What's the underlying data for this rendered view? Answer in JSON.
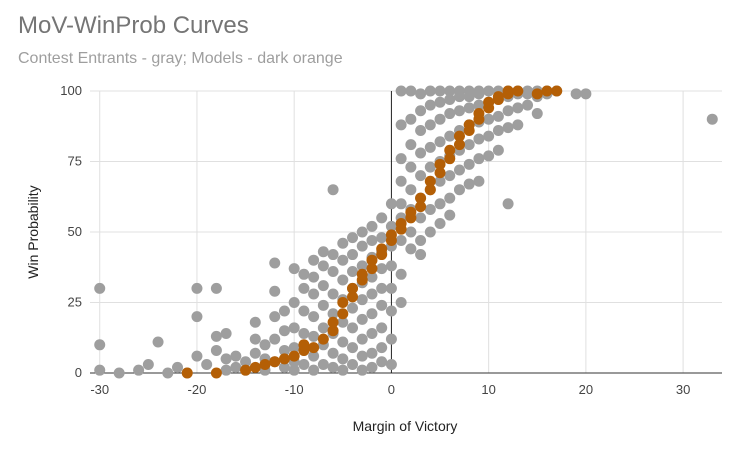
{
  "title": "MoV-WinProb Curves",
  "subtitle": "Contest Entrants - gray; Models - dark orange",
  "chart_data": {
    "type": "scatter",
    "title": "MoV-WinProb Curves",
    "subtitle": "Contest Entrants - gray; Models - dark orange",
    "xlabel": "Margin of Victory",
    "ylabel": "Win Probability",
    "xlim": [
      -31,
      34
    ],
    "ylim": [
      0,
      100
    ],
    "x_ticks": [
      -30,
      -20,
      -10,
      0,
      10,
      20,
      30
    ],
    "x_tick_labels": [
      "-30",
      "-20",
      "-10",
      "0",
      "10",
      "20",
      "30"
    ],
    "y_ticks": [
      0,
      25,
      50,
      75,
      100
    ],
    "y_tick_labels": [
      "0",
      "25",
      "50",
      "75",
      "100"
    ],
    "grid": true,
    "legend": "none",
    "colors": {
      "entrants": "#9e9e9e",
      "models": "#b45f06",
      "zero_line": "#222222",
      "grid": "#e0e0e0"
    },
    "series": [
      {
        "color_key": "entrants",
        "points": [
          [
            -30,
            30
          ],
          [
            -30,
            10
          ],
          [
            -30,
            1
          ],
          [
            -28,
            0
          ],
          [
            -26,
            1
          ],
          [
            -25,
            3
          ],
          [
            -24,
            11
          ],
          [
            -23,
            0
          ],
          [
            -22,
            2
          ],
          [
            -21,
            0
          ],
          [
            -20,
            30
          ],
          [
            -20,
            20
          ],
          [
            -20,
            6
          ],
          [
            -19,
            3
          ],
          [
            -18,
            30
          ],
          [
            -18,
            13
          ],
          [
            -18,
            8
          ],
          [
            -17,
            14
          ],
          [
            -17,
            5
          ],
          [
            -17,
            1
          ],
          [
            -16,
            6
          ],
          [
            -16,
            2
          ],
          [
            -15,
            4
          ],
          [
            -15,
            1
          ],
          [
            -14,
            18
          ],
          [
            -14,
            12
          ],
          [
            -14,
            7
          ],
          [
            -13,
            10
          ],
          [
            -13,
            5
          ],
          [
            -13,
            1
          ],
          [
            -12,
            39
          ],
          [
            -12,
            29
          ],
          [
            -12,
            20
          ],
          [
            -12,
            12
          ],
          [
            -12,
            4
          ],
          [
            -11,
            22
          ],
          [
            -11,
            15
          ],
          [
            -11,
            8
          ],
          [
            -11,
            2
          ],
          [
            -10,
            37
          ],
          [
            -10,
            25
          ],
          [
            -10,
            16
          ],
          [
            -10,
            9
          ],
          [
            -10,
            4
          ],
          [
            -10,
            1
          ],
          [
            -9,
            35
          ],
          [
            -9,
            30
          ],
          [
            -9,
            22
          ],
          [
            -9,
            14
          ],
          [
            -9,
            8
          ],
          [
            -9,
            3
          ],
          [
            -8,
            40
          ],
          [
            -8,
            34
          ],
          [
            -8,
            28
          ],
          [
            -8,
            20
          ],
          [
            -8,
            13
          ],
          [
            -8,
            6
          ],
          [
            -8,
            1
          ],
          [
            -7,
            43
          ],
          [
            -7,
            38
          ],
          [
            -7,
            31
          ],
          [
            -7,
            24
          ],
          [
            -7,
            16
          ],
          [
            -7,
            10
          ],
          [
            -7,
            3
          ],
          [
            -6,
            65
          ],
          [
            -6,
            42
          ],
          [
            -6,
            36
          ],
          [
            -6,
            28
          ],
          [
            -6,
            21
          ],
          [
            -6,
            14
          ],
          [
            -6,
            7
          ],
          [
            -6,
            2
          ],
          [
            -5,
            46
          ],
          [
            -5,
            40
          ],
          [
            -5,
            33
          ],
          [
            -5,
            26
          ],
          [
            -5,
            18
          ],
          [
            -5,
            11
          ],
          [
            -5,
            5
          ],
          [
            -5,
            1
          ],
          [
            -4,
            48
          ],
          [
            -4,
            42
          ],
          [
            -4,
            36
          ],
          [
            -4,
            30
          ],
          [
            -4,
            23
          ],
          [
            -4,
            16
          ],
          [
            -4,
            9
          ],
          [
            -4,
            3
          ],
          [
            -3,
            50
          ],
          [
            -3,
            45
          ],
          [
            -3,
            38
          ],
          [
            -3,
            32
          ],
          [
            -3,
            26
          ],
          [
            -3,
            19
          ],
          [
            -3,
            12
          ],
          [
            -3,
            6
          ],
          [
            -3,
            1
          ],
          [
            -2,
            52
          ],
          [
            -2,
            47
          ],
          [
            -2,
            41
          ],
          [
            -2,
            34
          ],
          [
            -2,
            28
          ],
          [
            -2,
            21
          ],
          [
            -2,
            14
          ],
          [
            -2,
            7
          ],
          [
            -2,
            2
          ],
          [
            -1,
            55
          ],
          [
            -1,
            48
          ],
          [
            -1,
            43
          ],
          [
            -1,
            37
          ],
          [
            -1,
            30
          ],
          [
            -1,
            24
          ],
          [
            -1,
            16
          ],
          [
            -1,
            9
          ],
          [
            -1,
            4
          ],
          [
            0,
            60
          ],
          [
            0,
            52
          ],
          [
            0,
            45
          ],
          [
            0,
            38
          ],
          [
            0,
            30
          ],
          [
            0,
            22
          ],
          [
            0,
            12
          ],
          [
            0,
            3
          ],
          [
            1,
            100
          ],
          [
            1,
            88
          ],
          [
            1,
            76
          ],
          [
            1,
            68
          ],
          [
            1,
            60
          ],
          [
            1,
            55
          ],
          [
            1,
            47
          ],
          [
            1,
            35
          ],
          [
            1,
            25
          ],
          [
            2,
            100
          ],
          [
            2,
            90
          ],
          [
            2,
            81
          ],
          [
            2,
            73
          ],
          [
            2,
            65
          ],
          [
            2,
            58
          ],
          [
            2,
            50
          ],
          [
            2,
            44
          ],
          [
            3,
            99
          ],
          [
            3,
            93
          ],
          [
            3,
            86
          ],
          [
            3,
            78
          ],
          [
            3,
            70
          ],
          [
            3,
            62
          ],
          [
            3,
            55
          ],
          [
            3,
            47
          ],
          [
            3,
            42
          ],
          [
            4,
            100
          ],
          [
            4,
            95
          ],
          [
            4,
            88
          ],
          [
            4,
            80
          ],
          [
            4,
            73
          ],
          [
            4,
            65
          ],
          [
            4,
            58
          ],
          [
            4,
            50
          ],
          [
            5,
            100
          ],
          [
            5,
            96
          ],
          [
            5,
            90
          ],
          [
            5,
            82
          ],
          [
            5,
            75
          ],
          [
            5,
            68
          ],
          [
            5,
            60
          ],
          [
            5,
            53
          ],
          [
            6,
            100
          ],
          [
            6,
            97
          ],
          [
            6,
            92
          ],
          [
            6,
            84
          ],
          [
            6,
            77
          ],
          [
            6,
            70
          ],
          [
            6,
            62
          ],
          [
            6,
            56
          ],
          [
            7,
            100
          ],
          [
            7,
            98
          ],
          [
            7,
            93
          ],
          [
            7,
            86
          ],
          [
            7,
            79
          ],
          [
            7,
            72
          ],
          [
            7,
            65
          ],
          [
            8,
            100
          ],
          [
            8,
            98
          ],
          [
            8,
            94
          ],
          [
            8,
            88
          ],
          [
            8,
            81
          ],
          [
            8,
            74
          ],
          [
            8,
            67
          ],
          [
            9,
            100
          ],
          [
            9,
            99
          ],
          [
            9,
            95
          ],
          [
            9,
            89
          ],
          [
            9,
            83
          ],
          [
            9,
            76
          ],
          [
            9,
            68
          ],
          [
            10,
            100
          ],
          [
            10,
            96
          ],
          [
            10,
            90
          ],
          [
            10,
            84
          ],
          [
            10,
            77
          ],
          [
            11,
            100
          ],
          [
            11,
            97
          ],
          [
            11,
            91
          ],
          [
            11,
            86
          ],
          [
            11,
            79
          ],
          [
            12,
            100
          ],
          [
            12,
            98
          ],
          [
            12,
            93
          ],
          [
            12,
            87
          ],
          [
            12,
            60
          ],
          [
            13,
            100
          ],
          [
            13,
            99
          ],
          [
            13,
            94
          ],
          [
            13,
            88
          ],
          [
            14,
            100
          ],
          [
            14,
            99
          ],
          [
            14,
            95
          ],
          [
            15,
            100
          ],
          [
            15,
            98
          ],
          [
            15,
            92
          ],
          [
            16,
            100
          ],
          [
            16,
            99
          ],
          [
            17,
            100
          ],
          [
            19,
            99
          ],
          [
            20,
            99
          ],
          [
            33,
            90
          ]
        ]
      },
      {
        "color_key": "models",
        "points": [
          [
            -21,
            0
          ],
          [
            -18,
            0
          ],
          [
            -15,
            1
          ],
          [
            -14,
            2
          ],
          [
            -13,
            3
          ],
          [
            -12,
            4
          ],
          [
            -11,
            5
          ],
          [
            -10,
            6
          ],
          [
            -9,
            8
          ],
          [
            -9,
            10
          ],
          [
            -8,
            9
          ],
          [
            -7,
            12
          ],
          [
            -6,
            15
          ],
          [
            -6,
            18
          ],
          [
            -5,
            21
          ],
          [
            -5,
            25
          ],
          [
            -4,
            27
          ],
          [
            -4,
            30
          ],
          [
            -3,
            33
          ],
          [
            -3,
            35
          ],
          [
            -2,
            37
          ],
          [
            -2,
            40
          ],
          [
            -1,
            42
          ],
          [
            -1,
            44
          ],
          [
            0,
            47
          ],
          [
            0,
            49
          ],
          [
            1,
            51
          ],
          [
            1,
            53
          ],
          [
            2,
            55
          ],
          [
            2,
            57
          ],
          [
            3,
            59
          ],
          [
            3,
            62
          ],
          [
            4,
            65
          ],
          [
            4,
            68
          ],
          [
            5,
            71
          ],
          [
            5,
            74
          ],
          [
            6,
            76
          ],
          [
            6,
            79
          ],
          [
            7,
            81
          ],
          [
            7,
            84
          ],
          [
            8,
            86
          ],
          [
            8,
            88
          ],
          [
            9,
            90
          ],
          [
            9,
            92
          ],
          [
            10,
            94
          ],
          [
            10,
            96
          ],
          [
            11,
            97
          ],
          [
            11,
            98
          ],
          [
            12,
            99
          ],
          [
            12,
            100
          ],
          [
            13,
            100
          ],
          [
            15,
            99
          ],
          [
            16,
            100
          ],
          [
            17,
            100
          ]
        ]
      }
    ]
  }
}
